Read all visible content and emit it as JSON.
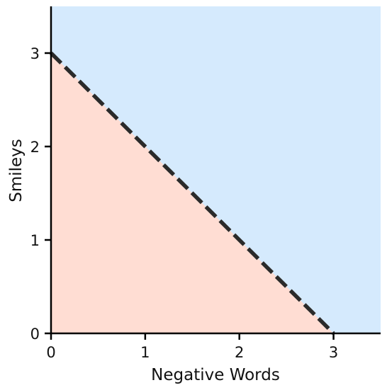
{
  "chart_data": {
    "type": "area",
    "xlabel": "Negative Words",
    "ylabel": "Smileys",
    "xlim": [
      0,
      3.5
    ],
    "ylim": [
      0,
      3.5
    ],
    "xticks": [
      0,
      1,
      2,
      3
    ],
    "yticks": [
      0,
      1,
      2,
      3
    ],
    "xtick_labels": [
      "0",
      "1",
      "2",
      "3"
    ],
    "ytick_labels": [
      "0",
      "1",
      "2",
      "3"
    ],
    "grid": false,
    "regions": [
      {
        "description": "region below decision boundary",
        "color": "#ffddd3"
      },
      {
        "description": "region above decision boundary",
        "color": "#d5eafd"
      }
    ],
    "boundary": {
      "style": "dashed",
      "color": "#2a2a2a",
      "points": [
        [
          0,
          3
        ],
        [
          3,
          0
        ]
      ]
    }
  }
}
